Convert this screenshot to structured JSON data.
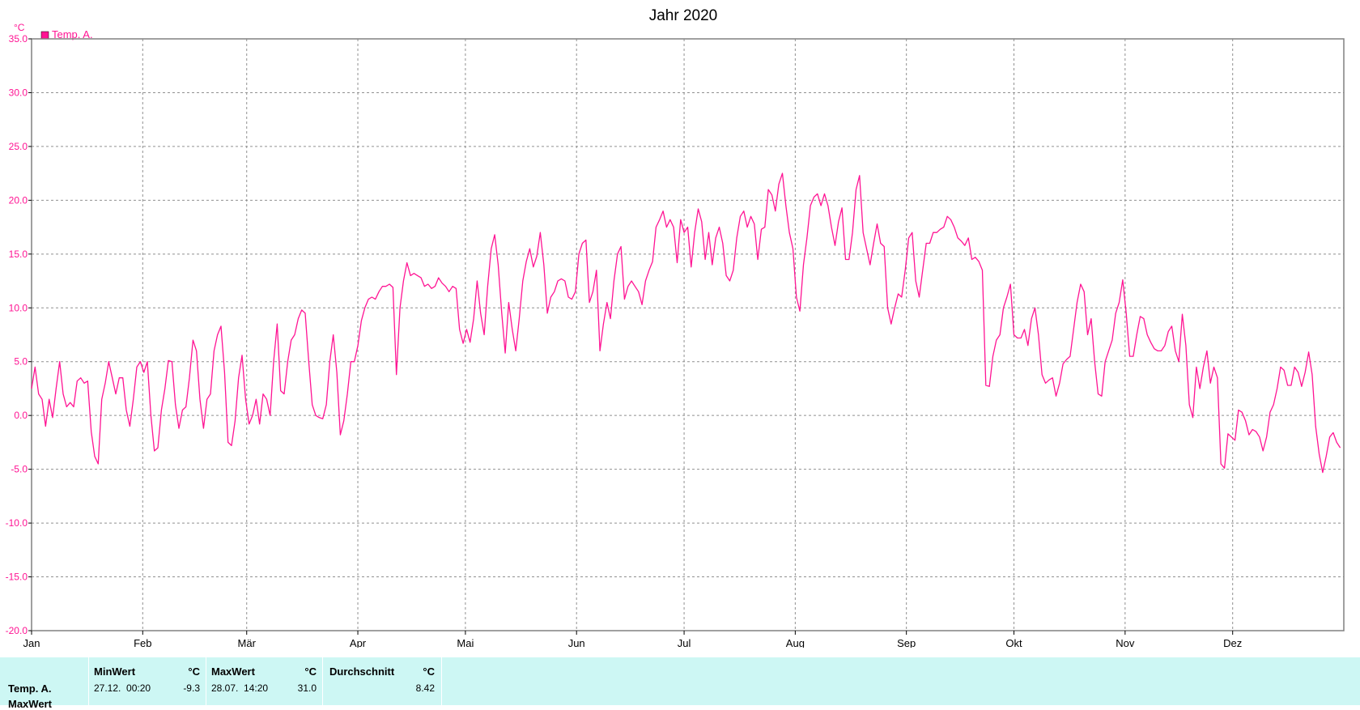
{
  "chart_data": {
    "type": "line",
    "title": "Jahr 2020",
    "ylabel": "°C",
    "ylim": [
      -20,
      35
    ],
    "yticks": [
      "35.0",
      "30.0",
      "25.0",
      "20.0",
      "15.0",
      "10.0",
      "5.0",
      "0.0",
      "-5.0",
      "-10.0",
      "-15.0",
      "-20.0"
    ],
    "ytick_values": [
      35,
      30,
      25,
      20,
      15,
      10,
      5,
      0,
      -5,
      -10,
      -15,
      -20
    ],
    "xlim": [
      0,
      366
    ],
    "xticks": [
      "Jan",
      "Feb",
      "Mär",
      "Apr",
      "Mai",
      "Jun",
      "Jul",
      "Aug",
      "Sep",
      "Okt",
      "Nov",
      "Dez"
    ],
    "xtick_days": [
      0,
      31,
      60,
      91,
      121,
      152,
      182,
      213,
      244,
      274,
      305,
      335
    ],
    "grid": true,
    "legend_position": "top-left",
    "series": [
      {
        "name": "Temp. A.",
        "color": "#ff1493",
        "values": [
          2.5,
          4.5,
          2,
          1.5,
          -1,
          1.5,
          -0.2,
          2.5,
          5,
          2,
          0.8,
          1.2,
          0.8,
          3.2,
          3.5,
          3,
          3.2,
          -1.5,
          -3.8,
          -4.5,
          1.5,
          3,
          5,
          3.5,
          2,
          3.5,
          3.5,
          0.5,
          -1,
          1.5,
          4.5,
          5,
          4,
          5,
          0,
          -3.3,
          -3,
          0.5,
          2.5,
          5.1,
          5,
          1,
          -1.2,
          0.5,
          0.8,
          3.5,
          7,
          6,
          1.5,
          -1.2,
          1.5,
          2,
          6,
          7.5,
          8.3,
          4,
          -2.5,
          -2.8,
          -0.5,
          3.5,
          5.6,
          1.5,
          -0.8,
          0,
          1.5,
          -0.8,
          2,
          1.5,
          0,
          5,
          8.5,
          2.3,
          2,
          5,
          7,
          7.5,
          9,
          9.8,
          9.5,
          5,
          1,
          0,
          -0.2,
          -0.3,
          1,
          5,
          7.5,
          4,
          -1.8,
          -0.5,
          2,
          5,
          5,
          6.5,
          8.8,
          10,
          10.8,
          11,
          10.8,
          11.5,
          12,
          12,
          12.2,
          11.9,
          3.8,
          10,
          12.5,
          14.2,
          13,
          13.2,
          13,
          12.8,
          12,
          12.2,
          11.8,
          12,
          12.8,
          12.3,
          12,
          11.5,
          12,
          11.8,
          8,
          6.7,
          8,
          6.8,
          9,
          12.5,
          9.5,
          7.5,
          12,
          15.5,
          16.8,
          14,
          9.5,
          5.8,
          10.5,
          8,
          6,
          9,
          12.5,
          14.3,
          15.5,
          13.8,
          14.8,
          17,
          14,
          9.5,
          11,
          11.5,
          12.5,
          12.7,
          12.5,
          11,
          10.8,
          11.5,
          15,
          16,
          16.3,
          10.5,
          11.5,
          13.5,
          6,
          8.5,
          10.5,
          9,
          12.5,
          15,
          15.7,
          10.8,
          12,
          12.5,
          12,
          11.5,
          10.3,
          12.5,
          13.5,
          14.3,
          17.5,
          18.2,
          19,
          17.5,
          18.2,
          17.5,
          14.2,
          18.2,
          17,
          17.5,
          13.8,
          17,
          19.2,
          18,
          14.5,
          17,
          14,
          16.5,
          17.5,
          16,
          13,
          12.5,
          13.5,
          16.5,
          18.5,
          19,
          17.5,
          18.5,
          17.8,
          14.5,
          17.3,
          17.5,
          21,
          20.5,
          19,
          21.5,
          22.5,
          19.5,
          17,
          15.5,
          11,
          9.7,
          14,
          16.5,
          19.5,
          20.3,
          20.6,
          19.5,
          20.6,
          19.5,
          17.5,
          15.8,
          18,
          19.3,
          14.5,
          14.5,
          17,
          21,
          22.3,
          17,
          15.5,
          14,
          16,
          17.8,
          16,
          15.7,
          10,
          8.5,
          10,
          11.3,
          11,
          13.5,
          16.5,
          17,
          12.5,
          11,
          13.5,
          16,
          16,
          17,
          17,
          17.3,
          17.5,
          18.5,
          18.2,
          17.5,
          16.5,
          16.2,
          15.8,
          16.5,
          14.5,
          14.7,
          14.3,
          13.5,
          2.8,
          2.7,
          5.5,
          7,
          7.5,
          10,
          11,
          12.2,
          7.5,
          7.2,
          7.2,
          8,
          6.5,
          9,
          10,
          7.5,
          3.8,
          3,
          3.3,
          3.5,
          1.8,
          3,
          4.8,
          5.2,
          5.5,
          8,
          10.5,
          12.2,
          11.5,
          7.5,
          9,
          5,
          2,
          1.8,
          5,
          6,
          7,
          9.5,
          10.5,
          12.6,
          9.5,
          5.5,
          5.5,
          7.5,
          9.2,
          9,
          7.5,
          6.8,
          6.2,
          6,
          6,
          6.5,
          7.8,
          8.3,
          6,
          5,
          9.4,
          6.5,
          1,
          -0.2,
          4.5,
          2.5,
          4.5,
          6,
          3,
          4.5,
          3.5,
          -4.5,
          -4.9,
          -1.7,
          -2,
          -2.3,
          0.5,
          0.3,
          -0.5,
          -1.8,
          -1.3,
          -1.5,
          -2,
          -3.3,
          -2,
          0.3,
          1,
          2.5,
          4.5,
          4.2,
          2.8,
          2.8,
          4.5,
          4,
          2.7,
          4,
          5.9,
          3.8,
          -1,
          -3.6,
          -5.3,
          -3.8,
          -2,
          -1.6,
          -2.5,
          -3
        ]
      }
    ]
  },
  "stats": {
    "series_label": "Temp. A.",
    "cut_label": "MaxWert",
    "min": {
      "header": "MinWert",
      "unit": "°C",
      "datetime": "27.12.  00:20",
      "value": "-9.3"
    },
    "max": {
      "header": "MaxWert",
      "unit": "°C",
      "datetime": "28.07.  14:20",
      "value": "31.0"
    },
    "avg": {
      "header": "Durchschnitt",
      "unit": "°C",
      "value": "8.42"
    }
  }
}
